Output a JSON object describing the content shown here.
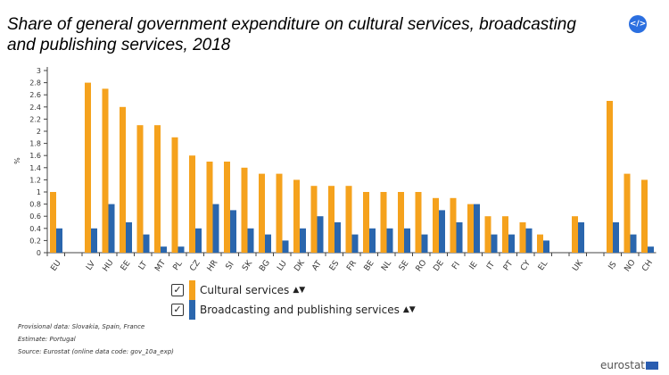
{
  "chart_data": {
    "type": "bar",
    "title": "Share of general government expenditure on cultural services, broadcasting and publishing services, 2018",
    "ylabel": "%",
    "xlabel": "",
    "ylim": [
      0,
      3
    ],
    "yticks": [
      "0",
      "0.2",
      "0.4",
      "0.6",
      "0.8",
      "1",
      "1.2",
      "1.4",
      "1.6",
      "1.8",
      "2",
      "2.2",
      "2.4",
      "2.6",
      "2.8",
      "3"
    ],
    "grid": false,
    "legend_position": "bottom",
    "categories": [
      "EU",
      "",
      "LV",
      "HU",
      "EE",
      "LT",
      "MT",
      "PL",
      "CZ",
      "HR",
      "SI",
      "SK",
      "BG",
      "LU",
      "DK",
      "AT",
      "ES",
      "FR",
      "BE",
      "NL",
      "SE",
      "RO",
      "DE",
      "FI",
      "IE",
      "IT",
      "PT",
      "CY",
      "EL",
      "",
      "UK",
      "",
      "IS",
      "NO",
      "CH"
    ],
    "series": [
      {
        "name": "Cultural services",
        "color": "#f5a21d",
        "values": [
          1.0,
          null,
          2.8,
          2.7,
          2.4,
          2.1,
          2.1,
          1.9,
          1.6,
          1.5,
          1.5,
          1.4,
          1.3,
          1.3,
          1.2,
          1.1,
          1.1,
          1.1,
          1.0,
          1.0,
          1.0,
          1.0,
          0.9,
          0.9,
          0.8,
          0.6,
          0.6,
          0.5,
          0.3,
          null,
          0.6,
          null,
          2.5,
          1.3,
          1.2
        ]
      },
      {
        "name": "Broadcasting and publishing services",
        "color": "#2a66ad",
        "values": [
          0.4,
          null,
          0.4,
          0.8,
          0.5,
          0.3,
          0.1,
          0.1,
          0.4,
          0.8,
          0.7,
          0.4,
          0.3,
          0.2,
          0.4,
          0.6,
          0.5,
          0.3,
          0.4,
          0.4,
          0.4,
          0.3,
          0.7,
          0.5,
          0.8,
          0.3,
          0.3,
          0.4,
          0.2,
          null,
          0.5,
          null,
          0.5,
          0.3,
          0.1
        ]
      }
    ]
  },
  "embed_icon": "code-icon",
  "notes": [
    "Provisional data: Slovakia, Spain, France",
    "Estimate: Portugal",
    "Source: Eurostat (online data code: gov_10a_exp)"
  ],
  "logo": "eurostat"
}
